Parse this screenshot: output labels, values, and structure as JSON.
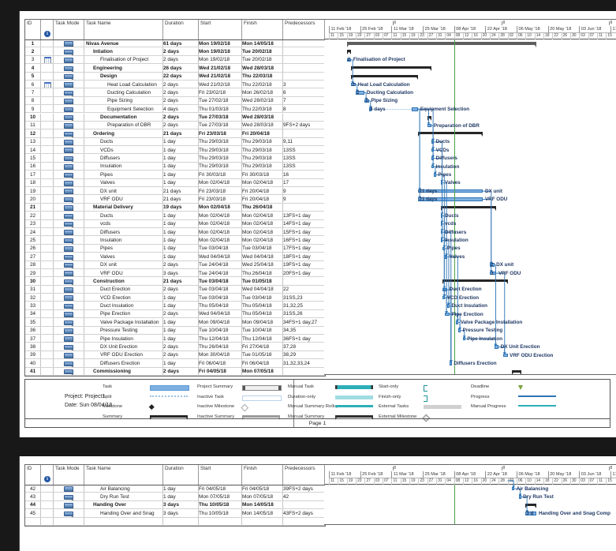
{
  "page_footer": "Page 1",
  "legend": {
    "project_line": "Project: Project1",
    "date_line": "Date: Sun 08/04/18",
    "columns": [
      [
        {
          "label": "Task",
          "swatch": "task"
        },
        {
          "label": "Split",
          "swatch": "split"
        },
        {
          "label": "Milestone",
          "swatch": "milestone"
        },
        {
          "label": "Summary",
          "swatch": "summary"
        }
      ],
      [
        {
          "label": "Project Summary",
          "swatch": "project-summary"
        },
        {
          "label": "Inactive Task",
          "swatch": "inactive-task"
        },
        {
          "label": "Inactive Milestone",
          "swatch": "inactive-milestone"
        },
        {
          "label": "Inactive Summary",
          "swatch": "inactive-summary"
        }
      ],
      [
        {
          "label": "Manual Task",
          "swatch": "manual-task"
        },
        {
          "label": "Duration-only",
          "swatch": "duration-only"
        },
        {
          "label": "Manual Summary Rollup",
          "swatch": "manual-rollup"
        },
        {
          "label": "Manual Summary",
          "swatch": "manual-summary"
        }
      ],
      [
        {
          "label": "Start-only",
          "swatch": "start-only"
        },
        {
          "label": "Finish-only",
          "swatch": "finish-only"
        },
        {
          "label": "External Tasks",
          "swatch": "external-tasks"
        },
        {
          "label": "External Milestone",
          "swatch": "external-milestone"
        }
      ],
      [
        {
          "label": "Deadline",
          "swatch": "deadline"
        },
        {
          "label": "Progress",
          "swatch": "progress"
        },
        {
          "label": "Manual Progress",
          "swatch": "manual-progress"
        }
      ]
    ]
  },
  "table": {
    "columns": [
      "ID",
      "",
      "Task Mode",
      "Task Name",
      "Duration",
      "Start",
      "Finish",
      "Predecessors"
    ]
  },
  "timescale": {
    "tier1_label": "8",
    "eight_marks": [
      28.5,
      77.3,
      125.3
    ],
    "major": [
      "11 Feb '18",
      "25 Feb '18",
      "11 Mar '18",
      "25 Mar '18",
      "08 Apr '18",
      "22 Apr '18",
      "06 May '18",
      "20 May '18",
      "03 Jun '18",
      "17"
    ],
    "minor": [
      "11",
      "15",
      "19",
      "23",
      "27",
      "03",
      "07",
      "11",
      "15",
      "19",
      "23",
      "27",
      "31",
      "04",
      "08",
      "12",
      "16",
      "20",
      "24",
      "28",
      "02",
      "06",
      "10",
      "14",
      "18",
      "22",
      "26",
      "30",
      "03",
      "07",
      "11",
      "15"
    ],
    "current_date_day": 56
  },
  "colors": {
    "bar_fill": "#7fb0e2",
    "bar_border": "#2e74b5",
    "link": "#2e74b5",
    "summary_bar": "#262626",
    "project_bar": "#5e5e5e",
    "current_date_line": "#4aa147",
    "teal": "#2eafb8",
    "teal_light": "#9fdde2",
    "external_gray": "#d0d0d0",
    "deadline_green": "#7aa33a"
  },
  "tasks": [
    {
      "id": 1,
      "indent": 0,
      "bold": true,
      "ind": false,
      "name": "Nivas Avenue",
      "duration": "61 days",
      "start": "Mon 19/02/18",
      "finish": "Mon 14/05/18",
      "pred": "",
      "bar": {
        "type": "project",
        "s": 8,
        "e": 93
      }
    },
    {
      "id": 2,
      "indent": 1,
      "bold": true,
      "ind": false,
      "name": "Intiation",
      "duration": "2 days",
      "start": "Mon 19/02/18",
      "finish": "Tue 20/02/18",
      "pred": "",
      "bar": {
        "type": "summary",
        "s": 8,
        "e": 10
      }
    },
    {
      "id": 3,
      "indent": 2,
      "bold": false,
      "ind": true,
      "name": "Finalisation of Project",
      "duration": "2 days",
      "start": "Mon 19/02/18",
      "finish": "Tue 20/02/18",
      "pred": "",
      "bar": {
        "type": "task",
        "s": 8,
        "e": 10,
        "ll": "2"
      }
    },
    {
      "id": 4,
      "indent": 1,
      "bold": true,
      "ind": false,
      "name": "Engineering",
      "duration": "26 days",
      "start": "Wed 21/02/18",
      "finish": "Wed 28/03/18",
      "pred": "",
      "bar": {
        "type": "summary",
        "s": 10,
        "e": 46
      }
    },
    {
      "id": 5,
      "indent": 2,
      "bold": true,
      "ind": false,
      "name": "Design",
      "duration": "22 days",
      "start": "Wed 21/02/18",
      "finish": "Thu 22/03/18",
      "pred": "",
      "bar": {
        "type": "summary",
        "s": 10,
        "e": 40
      }
    },
    {
      "id": 6,
      "indent": 3,
      "bold": false,
      "ind": true,
      "name": "Heat Load Calculation",
      "duration": "2 days",
      "start": "Wed 21/02/18",
      "finish": "Thu 22/02/18",
      "pred": "3",
      "bar": {
        "type": "task",
        "s": 10,
        "e": 12,
        "ll": "2"
      }
    },
    {
      "id": 7,
      "indent": 3,
      "bold": false,
      "ind": false,
      "name": "Ducting Calculation",
      "duration": "2 days",
      "start": "Fri 23/02/18",
      "finish": "Mon 26/02/18",
      "pred": "6",
      "bar": {
        "type": "task",
        "s": 12,
        "e": 16,
        "ll": "2"
      }
    },
    {
      "id": 8,
      "indent": 3,
      "bold": false,
      "ind": false,
      "name": "Pipe Sizing",
      "duration": "2 days",
      "start": "Tue 27/02/18",
      "finish": "Wed 28/02/18",
      "pred": "7",
      "bar": {
        "type": "task",
        "s": 16,
        "e": 18,
        "ll": "2"
      }
    },
    {
      "id": 9,
      "indent": 3,
      "bold": false,
      "ind": false,
      "name": "Equipment Selection",
      "duration": "4 days",
      "start": "Thu 01/03/18",
      "finish": "Thu 22/03/18",
      "pred": "8",
      "bar": {
        "type": "split",
        "s": 18,
        "e": 40,
        "segs": [
          [
            18,
            19
          ],
          [
            37,
            40
          ]
        ],
        "ll": "4 days"
      }
    },
    {
      "id": 10,
      "indent": 2,
      "bold": true,
      "ind": false,
      "name": "Documentation",
      "duration": "2 days",
      "start": "Tue 27/03/18",
      "finish": "Wed 28/03/18",
      "pred": "",
      "bar": {
        "type": "summary",
        "s": 44,
        "e": 46
      }
    },
    {
      "id": 11,
      "indent": 3,
      "bold": false,
      "ind": false,
      "name": "Preparation of DBR",
      "duration": "2 days",
      "start": "Tue 27/03/18",
      "finish": "Wed 28/03/18",
      "pred": "9FS+2 days",
      "bar": {
        "type": "task",
        "s": 44,
        "e": 46
      }
    },
    {
      "id": 12,
      "indent": 1,
      "bold": true,
      "ind": false,
      "name": "Ordering",
      "duration": "21 days",
      "start": "Fri 23/03/18",
      "finish": "Fri 20/04/18",
      "pred": "",
      "bar": {
        "type": "summary",
        "s": 40,
        "e": 69
      }
    },
    {
      "id": 13,
      "indent": 2,
      "bold": false,
      "ind": false,
      "name": "Ducts",
      "duration": "1 day",
      "start": "Thu 29/03/18",
      "finish": "Thu 29/03/18",
      "pred": "9,11",
      "bar": {
        "type": "task",
        "s": 46,
        "e": 47
      }
    },
    {
      "id": 14,
      "indent": 2,
      "bold": false,
      "ind": false,
      "name": "VCDs",
      "duration": "1 day",
      "start": "Thu 29/03/18",
      "finish": "Thu 29/03/18",
      "pred": "13SS",
      "bar": {
        "type": "task",
        "s": 46,
        "e": 47
      }
    },
    {
      "id": 15,
      "indent": 2,
      "bold": false,
      "ind": false,
      "name": "Diffusers",
      "duration": "1 day",
      "start": "Thu 29/03/18",
      "finish": "Thu 29/03/18",
      "pred": "13SS",
      "bar": {
        "type": "task",
        "s": 46,
        "e": 47
      }
    },
    {
      "id": 16,
      "indent": 2,
      "bold": false,
      "ind": false,
      "name": "Insulation",
      "duration": "1 day",
      "start": "Thu 29/03/18",
      "finish": "Thu 29/03/18",
      "pred": "13SS",
      "bar": {
        "type": "task",
        "s": 46,
        "e": 47
      }
    },
    {
      "id": 17,
      "indent": 2,
      "bold": false,
      "ind": false,
      "name": "Pipes",
      "duration": "1 day",
      "start": "Fri 30/03/18",
      "finish": "Fri 30/03/18",
      "pred": "16",
      "bar": {
        "type": "task",
        "s": 47,
        "e": 48
      }
    },
    {
      "id": 18,
      "indent": 2,
      "bold": false,
      "ind": false,
      "name": "Valves",
      "duration": "1 day",
      "start": "Mon 02/04/18",
      "finish": "Mon 02/04/18",
      "pred": "17",
      "bar": {
        "type": "task",
        "s": 50,
        "e": 51
      }
    },
    {
      "id": 19,
      "indent": 2,
      "bold": false,
      "ind": false,
      "name": "DX unit",
      "duration": "21 days",
      "start": "Fri 23/03/18",
      "finish": "Fri 20/04/18",
      "pred": "9",
      "bar": {
        "type": "task",
        "s": 40,
        "e": 69,
        "ll": "21 days"
      }
    },
    {
      "id": 20,
      "indent": 2,
      "bold": false,
      "ind": false,
      "name": "VRF ODU",
      "duration": "21 days",
      "start": "Fri 23/03/18",
      "finish": "Fri 20/04/18",
      "pred": "9",
      "bar": {
        "type": "task",
        "s": 40,
        "e": 69,
        "ll": "21 days"
      }
    },
    {
      "id": 21,
      "indent": 1,
      "bold": true,
      "ind": false,
      "name": "Material Delivery",
      "duration": "19 days",
      "start": "Mon 02/04/18",
      "finish": "Thu 26/04/18",
      "pred": "",
      "bar": {
        "type": "summary",
        "s": 50,
        "e": 75
      }
    },
    {
      "id": 22,
      "indent": 2,
      "bold": false,
      "ind": false,
      "name": "Ducts",
      "duration": "1 day",
      "start": "Mon 02/04/18",
      "finish": "Mon 02/04/18",
      "pred": "13FS+1 day",
      "bar": {
        "type": "task",
        "s": 50,
        "e": 51
      }
    },
    {
      "id": 23,
      "indent": 2,
      "bold": false,
      "ind": false,
      "name": "vcds",
      "duration": "1 day",
      "start": "Mon 02/04/18",
      "finish": "Mon 02/04/18",
      "pred": "14FS+1 day",
      "bar": {
        "type": "task",
        "s": 50,
        "e": 51
      }
    },
    {
      "id": 24,
      "indent": 2,
      "bold": false,
      "ind": false,
      "name": "Diffusers",
      "duration": "1 day",
      "start": "Mon 02/04/18",
      "finish": "Mon 02/04/18",
      "pred": "15FS+1 day",
      "bar": {
        "type": "task",
        "s": 50,
        "e": 51
      }
    },
    {
      "id": 25,
      "indent": 2,
      "bold": false,
      "ind": false,
      "name": "Insulation",
      "duration": "1 day",
      "start": "Mon 02/04/18",
      "finish": "Mon 02/04/18",
      "pred": "16FS+1 day",
      "bar": {
        "type": "task",
        "s": 50,
        "e": 51
      }
    },
    {
      "id": 26,
      "indent": 2,
      "bold": false,
      "ind": false,
      "name": "Pipes",
      "duration": "1 day",
      "start": "Tue 03/04/18",
      "finish": "Tue 03/04/18",
      "pred": "17FS+1 day",
      "bar": {
        "type": "task",
        "s": 51,
        "e": 52
      }
    },
    {
      "id": 27,
      "indent": 2,
      "bold": false,
      "ind": false,
      "name": "Valves",
      "duration": "1 day",
      "start": "Wed 04/04/18",
      "finish": "Wed 04/04/18",
      "pred": "18FS+1 day",
      "bar": {
        "type": "task",
        "s": 52,
        "e": 53
      }
    },
    {
      "id": 28,
      "indent": 2,
      "bold": false,
      "ind": false,
      "name": "DX unit",
      "duration": "2 days",
      "start": "Tue 24/04/18",
      "finish": "Wed 25/04/18",
      "pred": "19FS+1 day",
      "bar": {
        "type": "task",
        "s": 72,
        "e": 74,
        "ll": "2"
      }
    },
    {
      "id": 29,
      "indent": 2,
      "bold": false,
      "ind": false,
      "name": "VRF ODU",
      "duration": "3 days",
      "start": "Tue 24/04/18",
      "finish": "Thu 26/04/18",
      "pred": "20FS+1 day",
      "bar": {
        "type": "task",
        "s": 72,
        "e": 75,
        "ll": "3"
      }
    },
    {
      "id": 30,
      "indent": 1,
      "bold": true,
      "ind": false,
      "name": "Construction",
      "duration": "21 days",
      "start": "Tue 03/04/18",
      "finish": "Tue 01/05/18",
      "pred": "",
      "bar": {
        "type": "summary",
        "s": 51,
        "e": 80
      }
    },
    {
      "id": 31,
      "indent": 2,
      "bold": false,
      "ind": false,
      "name": "Duct Erection",
      "duration": "2 days",
      "start": "Tue 03/04/18",
      "finish": "Wed 04/04/18",
      "pred": "22",
      "bar": {
        "type": "task",
        "s": 51,
        "e": 53
      }
    },
    {
      "id": 32,
      "indent": 2,
      "bold": false,
      "ind": false,
      "name": "VCD Erection",
      "duration": "1 day",
      "start": "Tue 03/04/18",
      "finish": "Tue 03/04/18",
      "pred": "31SS,23",
      "bar": {
        "type": "task",
        "s": 51,
        "e": 52
      }
    },
    {
      "id": 33,
      "indent": 2,
      "bold": false,
      "ind": false,
      "name": "Duct Insulation",
      "duration": "1 day",
      "start": "Thu 05/04/18",
      "finish": "Thu 05/04/18",
      "pred": "31,32,25",
      "bar": {
        "type": "task",
        "s": 53,
        "e": 54
      }
    },
    {
      "id": 34,
      "indent": 2,
      "bold": false,
      "ind": false,
      "name": "Pipe Erection",
      "duration": "2 days",
      "start": "Wed 04/04/18",
      "finish": "Thu 05/04/18",
      "pred": "31SS,26",
      "bar": {
        "type": "task",
        "s": 52,
        "e": 54
      }
    },
    {
      "id": 35,
      "indent": 2,
      "bold": false,
      "ind": false,
      "name": "Valve Package Installation",
      "duration": "1 day",
      "start": "Mon 09/04/18",
      "finish": "Mon 09/04/18",
      "pred": "34FS+1 day,27",
      "bar": {
        "type": "task",
        "s": 57,
        "e": 58
      }
    },
    {
      "id": 36,
      "indent": 2,
      "bold": false,
      "ind": false,
      "name": "Pressure Testing",
      "duration": "1 day",
      "start": "Tue 10/04/18",
      "finish": "Tue 10/04/18",
      "pred": "34,35",
      "bar": {
        "type": "task",
        "s": 58,
        "e": 59
      }
    },
    {
      "id": 37,
      "indent": 2,
      "bold": false,
      "ind": false,
      "name": "Pipe Insulation",
      "duration": "1 day",
      "start": "Thu 12/04/18",
      "finish": "Thu 12/04/18",
      "pred": "36FS+1 day",
      "bar": {
        "type": "task",
        "s": 60,
        "e": 61
      }
    },
    {
      "id": 38,
      "indent": 2,
      "bold": false,
      "ind": false,
      "name": "DX Unit  Erection",
      "duration": "2 days",
      "start": "Thu 26/04/18",
      "finish": "Fri 27/04/18",
      "pred": "37,28",
      "bar": {
        "type": "task",
        "s": 74,
        "e": 76
      }
    },
    {
      "id": 39,
      "indent": 2,
      "bold": false,
      "ind": false,
      "name": "VRF ODU Erection",
      "duration": "2 days",
      "start": "Mon 30/04/18",
      "finish": "Tue 01/05/18",
      "pred": "38,29",
      "bar": {
        "type": "task",
        "s": 78,
        "e": 80
      }
    },
    {
      "id": 40,
      "indent": 2,
      "bold": false,
      "ind": false,
      "name": "Diffusers Erection",
      "duration": "1 day",
      "start": "Fri 06/04/18",
      "finish": "Fri 06/04/18",
      "pred": "31,32,33,24",
      "bar": {
        "type": "task",
        "s": 54,
        "e": 55
      }
    },
    {
      "id": 41,
      "indent": 1,
      "bold": true,
      "ind": false,
      "name": "Commissioning",
      "duration": "2 days",
      "start": "Fri 04/05/18",
      "finish": "Mon 07/05/18",
      "pred": "",
      "bar": {
        "type": "summary",
        "s": 82,
        "e": 86
      }
    },
    {
      "id": 42,
      "indent": 2,
      "bold": false,
      "ind": false,
      "name": "Air Balancing",
      "duration": "1 day",
      "start": "Fri 04/05/18",
      "finish": "Fri 04/05/18",
      "pred": "39FS+2 days",
      "bar": {
        "type": "task",
        "s": 82,
        "e": 83
      }
    },
    {
      "id": 43,
      "indent": 2,
      "bold": false,
      "ind": false,
      "name": "Dry Run Test",
      "duration": "1 day",
      "start": "Mon 07/05/18",
      "finish": "Mon 07/05/18",
      "pred": "42",
      "bar": {
        "type": "task",
        "s": 85,
        "e": 86
      }
    },
    {
      "id": 44,
      "indent": 1,
      "bold": true,
      "ind": false,
      "name": "Handing Over",
      "duration": "3 days",
      "start": "Thu 10/05/18",
      "finish": "Mon 14/05/18",
      "pred": "",
      "bar": {
        "type": "summary",
        "s": 88,
        "e": 93
      }
    },
    {
      "id": 45,
      "indent": 2,
      "bold": false,
      "ind": false,
      "name": "Handing Over and Snag",
      "duration": "3 days",
      "start": "Thu 10/05/18",
      "finish": "Mon 14/05/18",
      "pred": "43FS+2 days",
      "bar": {
        "type": "task",
        "s": 88,
        "e": 93,
        "ll": "3 d",
        "rl": "Handing Over and Snag Comp"
      }
    }
  ]
}
